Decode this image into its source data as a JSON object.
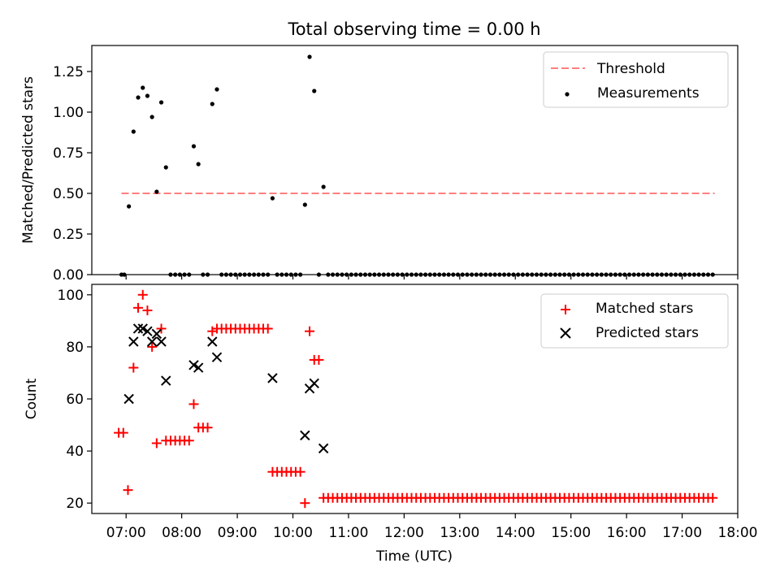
{
  "chart_data": [
    {
      "type": "scatter",
      "title": "Total observing time = 0.00 h",
      "xlabel": "",
      "ylabel": "Matched/Predicted stars",
      "xlim": [
        "06:23",
        "18:00"
      ],
      "ylim": [
        0,
        1.41
      ],
      "yticks": [
        "0.00",
        "0.25",
        "0.50",
        "0.75",
        "1.00",
        "1.25"
      ],
      "legend_position": "upper right",
      "colors": {
        "threshold": "#ff7f7f",
        "measurements": "#000000"
      },
      "threshold": {
        "name": "Threshold",
        "y": 0.5,
        "x_range": [
          "06:55",
          "17:35"
        ]
      },
      "series": [
        {
          "name": "Measurements",
          "x": [
            "06:55",
            "06:58",
            "07:03",
            "07:08",
            "07:13",
            "07:18",
            "07:23",
            "07:28",
            "07:33",
            "07:38",
            "07:43",
            "07:48",
            "07:53",
            "07:58",
            "08:03",
            "08:08",
            "08:13",
            "08:18",
            "08:23",
            "08:28",
            "08:33",
            "08:38",
            "08:43",
            "08:48",
            "08:53",
            "08:58",
            "09:03",
            "09:08",
            "09:13",
            "09:18",
            "09:23",
            "09:28",
            "09:33",
            "09:38",
            "09:43",
            "09:48",
            "09:53",
            "09:58",
            "10:03",
            "10:08",
            "10:13",
            "10:18",
            "10:23",
            "10:28",
            "10:33"
          ],
          "y": [
            0,
            0,
            0.42,
            0.88,
            1.09,
            1.15,
            1.1,
            0.97,
            0.51,
            1.06,
            0.66,
            0,
            0,
            0,
            0,
            0,
            0.79,
            0.68,
            0,
            0,
            1.05,
            1.14,
            0,
            0,
            0,
            0,
            0,
            0,
            0,
            0,
            0,
            0,
            0,
            0.47,
            0,
            0,
            0,
            0,
            0,
            0,
            0.43,
            1.34,
            1.13,
            0,
            0.54
          ],
          "tail_zero_values": {
            "from": "10:38",
            "to": "17:33",
            "step_minutes": 5,
            "y": 0
          }
        }
      ]
    },
    {
      "type": "scatter",
      "title": "",
      "xlabel": "Time (UTC)",
      "ylabel": "Count",
      "xlim": [
        "06:23",
        "18:00"
      ],
      "ylim": [
        16,
        104
      ],
      "yticks": [
        "20",
        "40",
        "60",
        "80",
        "100"
      ],
      "xticks": [
        "07:00",
        "08:00",
        "09:00",
        "10:00",
        "11:00",
        "12:00",
        "13:00",
        "14:00",
        "15:00",
        "16:00",
        "17:00",
        "18:00"
      ],
      "legend_position": "upper right",
      "colors": {
        "matched": "#ff0000",
        "predicted": "#000000"
      },
      "series": [
        {
          "name": "Matched stars",
          "marker": "+",
          "x": [
            "06:52",
            "06:57",
            "07:02",
            "07:08",
            "07:13",
            "07:18",
            "07:23",
            "07:28",
            "07:33",
            "07:38",
            "07:43",
            "07:48",
            "07:53",
            "07:58",
            "08:03",
            "08:08",
            "08:13",
            "08:18",
            "08:23",
            "08:28",
            "08:33",
            "08:38",
            "08:43",
            "08:48",
            "08:53",
            "08:58",
            "09:03",
            "09:08",
            "09:13",
            "09:18",
            "09:23",
            "09:28",
            "09:33",
            "09:38",
            "09:43",
            "09:48",
            "09:53",
            "09:58",
            "10:03",
            "10:08",
            "10:13",
            "10:18",
            "10:23",
            "10:28",
            "10:33"
          ],
          "y": [
            47,
            47,
            25,
            72,
            95,
            100,
            94,
            80,
            43,
            87,
            44,
            44,
            44,
            44,
            44,
            44,
            58,
            49,
            49,
            49,
            86,
            87,
            87,
            87,
            87,
            87,
            87,
            87,
            87,
            87,
            87,
            87,
            87,
            32,
            32,
            32,
            32,
            32,
            32,
            32,
            20,
            86,
            75,
            75,
            22
          ],
          "tail_values": {
            "from": "10:38",
            "to": "17:33",
            "step_minutes": 5,
            "y": 22
          }
        },
        {
          "name": "Predicted stars",
          "marker": "x",
          "x": [
            "07:03",
            "07:08",
            "07:13",
            "07:18",
            "07:23",
            "07:28",
            "07:33",
            "07:38",
            "07:43",
            "08:13",
            "08:18",
            "08:33",
            "08:38",
            "09:38",
            "10:13",
            "10:18",
            "10:23",
            "10:33"
          ],
          "y": [
            60,
            82,
            87,
            87,
            86,
            82,
            85,
            82,
            67,
            73,
            72,
            82,
            76,
            68,
            46,
            64,
            66,
            41
          ]
        }
      ]
    }
  ]
}
